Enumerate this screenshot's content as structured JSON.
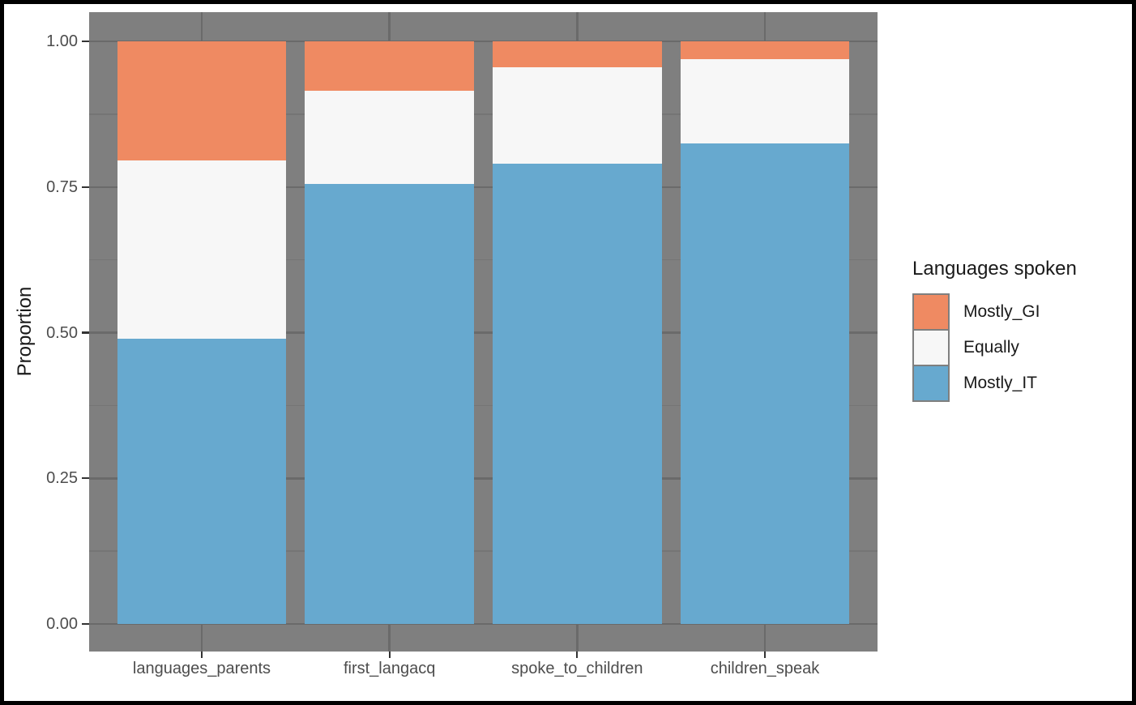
{
  "figure": {
    "background": "#FFFFFF",
    "border_color": "#000000",
    "panel_background": "#7F7F7F",
    "gridline_major_color": "#6A6A6A",
    "gridline_minor_color": "#757575",
    "tick_color": "#333333",
    "axis_text_color": "#4D4D4D",
    "title_text_color": "#1A1A1A"
  },
  "chart_data": {
    "type": "bar",
    "stacked": true,
    "title": "",
    "xlabel": "",
    "ylabel": "Proportion",
    "categories": [
      "languages_parents",
      "first_langacq",
      "spoke_to_children",
      "children_speak"
    ],
    "series": [
      {
        "name": "Mostly_GI",
        "color": "#EF8A62",
        "values": [
          0.205,
          0.085,
          0.045,
          0.03
        ]
      },
      {
        "name": "Equally",
        "color": "#F7F7F7",
        "values": [
          0.305,
          0.16,
          0.165,
          0.145
        ]
      },
      {
        "name": "Mostly_IT",
        "color": "#67A9CF",
        "values": [
          0.49,
          0.755,
          0.79,
          0.825
        ]
      }
    ],
    "ylim": [
      0,
      1
    ],
    "yticks": [
      0,
      0.25,
      0.5,
      0.75,
      1
    ],
    "ytick_labels": [
      "0.00",
      "0.25",
      "0.50",
      "0.75",
      "1.00"
    ],
    "minor_gridlines": [
      0.125,
      0.375,
      0.625,
      0.875
    ],
    "grid": true,
    "legend_title": "Languages spoken",
    "legend_position": "right",
    "bar_width_fraction": 0.9
  }
}
